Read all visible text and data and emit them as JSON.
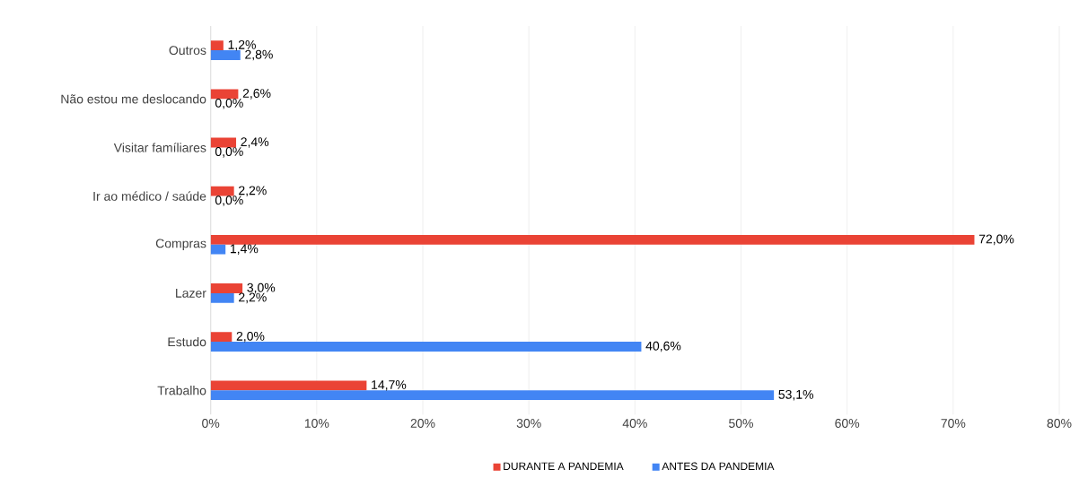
{
  "chart_data": {
    "type": "bar",
    "orientation": "horizontal",
    "categories": [
      "Outros",
      "Não estou me deslocando",
      "Visitar famíliares",
      "Ir ao médico / saúde",
      "Compras",
      "Lazer",
      "Estudo",
      "Trabalho"
    ],
    "series": [
      {
        "name": "DURANTE A PANDEMIA",
        "color": "#ea4335",
        "values": [
          1.2,
          2.6,
          2.4,
          2.2,
          72.0,
          3.0,
          2.0,
          14.7
        ],
        "value_labels": [
          "1,2%",
          "2,6%",
          "2,4%",
          "2,2%",
          "72,0%",
          "3,0%",
          "2,0%",
          "14,7%"
        ]
      },
      {
        "name": "ANTES DA PANDEMIA",
        "color": "#4285f4",
        "values": [
          2.8,
          0.0,
          0.0,
          0.0,
          1.4,
          2.2,
          40.6,
          53.1
        ],
        "value_labels": [
          "2,8%",
          "0,0%",
          "0,0%",
          "0,0%",
          "1,4%",
          "2,2%",
          "40,6%",
          "53,1%"
        ]
      }
    ],
    "xlim": [
      0,
      80
    ],
    "xticks": [
      {
        "value": 0,
        "label": "0%"
      },
      {
        "value": 10,
        "label": "10%"
      },
      {
        "value": 20,
        "label": "20%"
      },
      {
        "value": 30,
        "label": "30%"
      },
      {
        "value": 40,
        "label": "40%"
      },
      {
        "value": 50,
        "label": "50%"
      },
      {
        "value": 60,
        "label": "60%"
      },
      {
        "value": 70,
        "label": "70%"
      },
      {
        "value": 80,
        "label": "80%"
      }
    ],
    "grid": "x",
    "legend": "bottom"
  }
}
